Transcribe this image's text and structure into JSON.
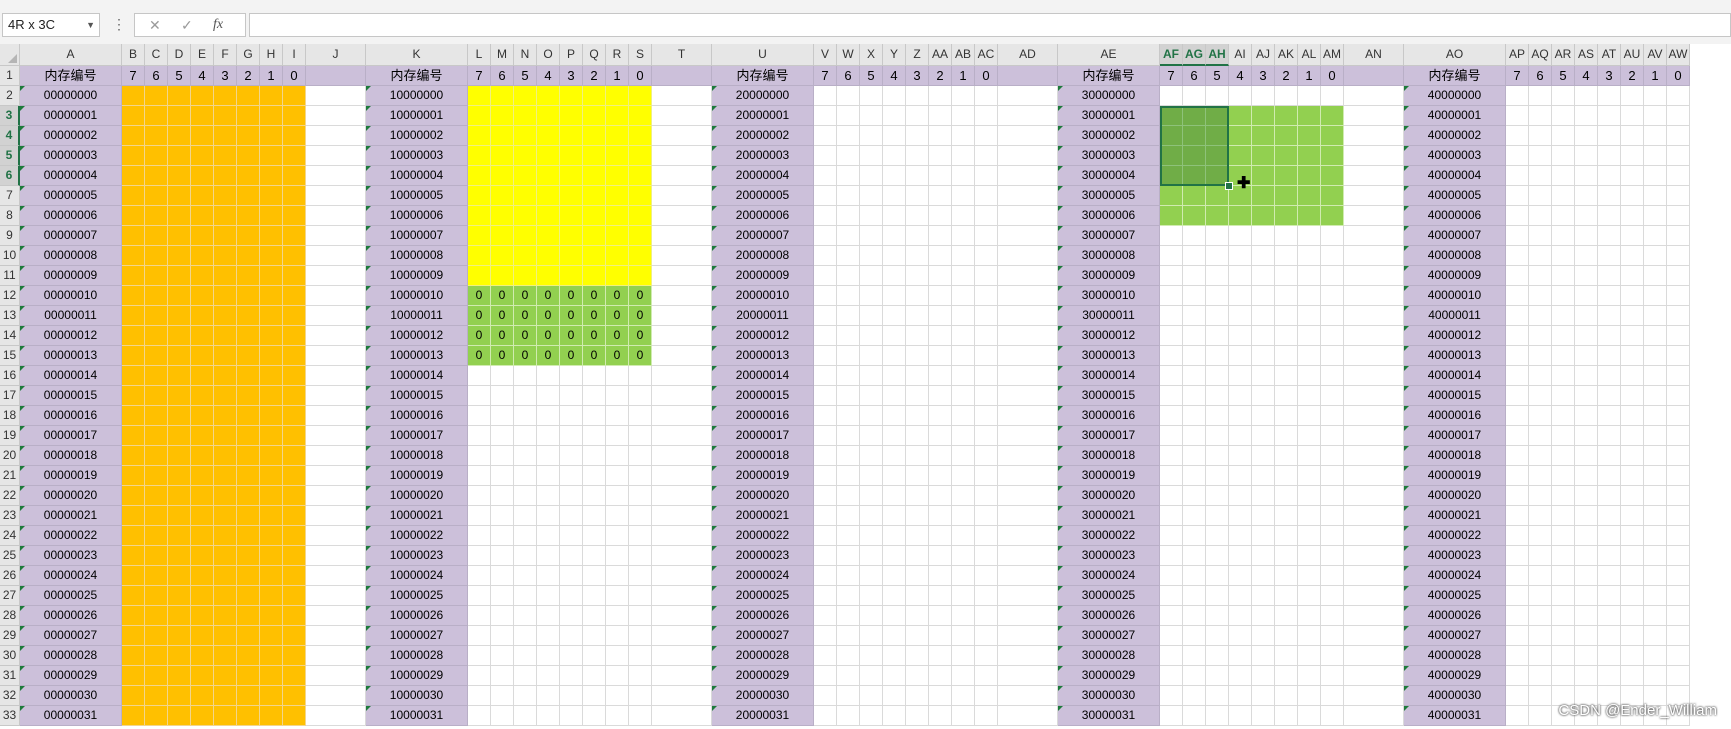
{
  "name_box": {
    "value": "4R x 3C"
  },
  "formula_bar": {
    "dots": "⋮",
    "cancel_icon": "✕",
    "enter_icon": "✓",
    "fx_label": "fx",
    "value": ""
  },
  "columns": [
    "A",
    "B",
    "C",
    "D",
    "E",
    "F",
    "G",
    "H",
    "I",
    "J",
    "K",
    "L",
    "M",
    "N",
    "O",
    "P",
    "Q",
    "R",
    "S",
    "T",
    "U",
    "V",
    "W",
    "X",
    "Y",
    "Z",
    "AA",
    "AB",
    "AC",
    "AD",
    "AE",
    "AF",
    "AG",
    "AH",
    "AI",
    "AJ",
    "AK",
    "AL",
    "AM",
    "AN",
    "AO",
    "AP",
    "AQ",
    "AR",
    "AS",
    "AT",
    "AU",
    "AV",
    "AW"
  ],
  "selected_columns": [
    "AF",
    "AG",
    "AH"
  ],
  "row_numbers": [
    1,
    2,
    3,
    4,
    5,
    6,
    7,
    8,
    9,
    10,
    11,
    12,
    13,
    14,
    15,
    16,
    17,
    18,
    19,
    20,
    21,
    22,
    23,
    24,
    25,
    26,
    27,
    28,
    29,
    30,
    31,
    32,
    33
  ],
  "selected_rows": [
    3,
    4,
    5,
    6
  ],
  "header_label": "内存编号",
  "bit_labels": [
    "7",
    "6",
    "5",
    "4",
    "3",
    "2",
    "1",
    "0"
  ],
  "memory_blocks": [
    {
      "column": "A",
      "prefix": "0",
      "fill": "orange"
    },
    {
      "column": "K",
      "prefix": "1",
      "fill": "yellow"
    },
    {
      "column": "U",
      "prefix": "2",
      "fill": "none"
    },
    {
      "column": "AE",
      "prefix": "3",
      "fill": "green"
    },
    {
      "column": "AO",
      "prefix": "4",
      "fill": "none"
    }
  ],
  "memory_ids": {
    "0": [
      "00000000",
      "00000001",
      "00000002",
      "00000003",
      "00000004",
      "00000005",
      "00000006",
      "00000007",
      "00000008",
      "00000009",
      "00000010",
      "00000011",
      "00000012",
      "00000013",
      "00000014",
      "00000015",
      "00000016",
      "00000017",
      "00000018",
      "00000019",
      "00000020",
      "00000021",
      "00000022",
      "00000023",
      "00000024",
      "00000025",
      "00000026",
      "00000027",
      "00000028",
      "00000029",
      "00000030",
      "00000031"
    ],
    "1": [
      "10000000",
      "10000001",
      "10000002",
      "10000003",
      "10000004",
      "10000005",
      "10000006",
      "10000007",
      "10000008",
      "10000009",
      "10000010",
      "10000011",
      "10000012",
      "10000013",
      "10000014",
      "10000015",
      "10000016",
      "10000017",
      "10000018",
      "10000019",
      "10000020",
      "10000021",
      "10000022",
      "10000023",
      "10000024",
      "10000025",
      "10000026",
      "10000027",
      "10000028",
      "10000029",
      "10000030",
      "10000031"
    ],
    "2": [
      "20000000",
      "20000001",
      "20000002",
      "20000003",
      "20000004",
      "20000005",
      "20000006",
      "20000007",
      "20000008",
      "20000009",
      "20000010",
      "20000011",
      "20000012",
      "20000013",
      "20000014",
      "20000015",
      "20000016",
      "20000017",
      "20000018",
      "20000019",
      "20000020",
      "20000021",
      "20000022",
      "20000023",
      "20000024",
      "20000025",
      "20000026",
      "20000027",
      "20000028",
      "20000029",
      "20000030",
      "20000031"
    ],
    "3": [
      "30000000",
      "30000001",
      "30000002",
      "30000003",
      "30000004",
      "30000005",
      "30000006",
      "30000007",
      "30000008",
      "30000009",
      "30000010",
      "30000011",
      "30000012",
      "30000013",
      "30000014",
      "30000015",
      "30000016",
      "30000017",
      "30000018",
      "30000019",
      "30000020",
      "30000021",
      "30000022",
      "30000023",
      "30000024",
      "30000025",
      "30000026",
      "30000027",
      "30000028",
      "30000029",
      "30000030",
      "30000031"
    ],
    "4": [
      "40000000",
      "40000001",
      "40000002",
      "40000003",
      "40000004",
      "40000005",
      "40000006",
      "40000007",
      "40000008",
      "40000009",
      "40000010",
      "40000011",
      "40000012",
      "40000013",
      "40000014",
      "40000015",
      "40000016",
      "40000017",
      "40000018",
      "40000019",
      "40000020",
      "40000021",
      "40000022",
      "40000023",
      "40000024",
      "40000025",
      "40000026",
      "40000027",
      "40000028",
      "40000029",
      "40000030",
      "40000031"
    ]
  },
  "zero_value": "0",
  "watermark": "CSDN @Ender_William",
  "colors": {
    "lavender": "#ccc0da",
    "orange": "#ffc000",
    "yellow": "#ffff00",
    "green": "#92d050",
    "dark_green": "#70ad47",
    "excel_green": "#217346"
  }
}
